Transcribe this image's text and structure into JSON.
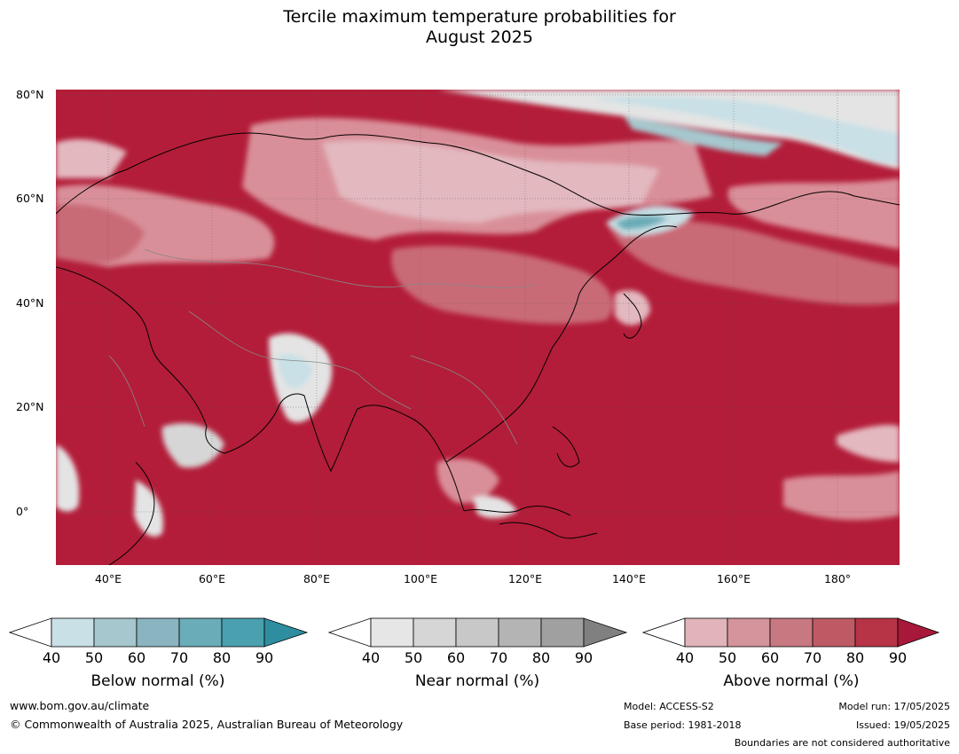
{
  "title_line1": "Tercile maximum temperature probabilities for",
  "title_line2": "August 2025",
  "axes": {
    "lat_labels": [
      "80°N",
      "60°N",
      "40°N",
      "20°N",
      "0°"
    ],
    "lon_labels": [
      "40°E",
      "60°E",
      "80°E",
      "100°E",
      "120°E",
      "140°E",
      "160°E",
      "180°"
    ]
  },
  "colorbars": [
    {
      "title": "Below normal (%)",
      "ticks": [
        "40",
        "50",
        "60",
        "70",
        "80",
        "90"
      ],
      "colors": [
        "#ffffff",
        "#c8e0e6",
        "#a6c7ce",
        "#8ab4bf",
        "#6aacb8",
        "#4aa0ae",
        "#2e8ea0"
      ]
    },
    {
      "title": "Near normal (%)",
      "ticks": [
        "40",
        "50",
        "60",
        "70",
        "80",
        "90"
      ],
      "colors": [
        "#ffffff",
        "#e6e6e6",
        "#d6d6d6",
        "#c8c8c8",
        "#b4b4b4",
        "#a0a0a0",
        "#808080"
      ]
    },
    {
      "title": "Above normal (%)",
      "ticks": [
        "40",
        "50",
        "60",
        "70",
        "80",
        "90"
      ],
      "colors": [
        "#ffffff",
        "#e0b4ba",
        "#d4949c",
        "#c87880",
        "#be5a64",
        "#b63446",
        "#a8183a"
      ]
    }
  ],
  "footer": {
    "url": "www.bom.gov.au/climate",
    "copyright": "© Commonwealth of Australia 2025, Australian Bureau of Meteorology",
    "model": "Model: ACCESS-S2",
    "base_period": "Base period: 1981-2018",
    "model_run": "Model run: 17/05/2025",
    "issued": "Issued: 19/05/2025",
    "disclaimer": "Boundaries are not considered authoritative"
  }
}
